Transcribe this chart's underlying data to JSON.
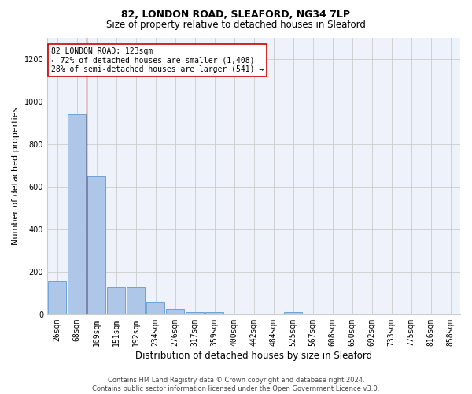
{
  "title_line1": "82, LONDON ROAD, SLEAFORD, NG34 7LP",
  "title_line2": "Size of property relative to detached houses in Sleaford",
  "xlabel": "Distribution of detached houses by size in Sleaford",
  "ylabel": "Number of detached properties",
  "footnote": "Contains HM Land Registry data © Crown copyright and database right 2024.\nContains public sector information licensed under the Open Government Licence v3.0.",
  "bins": [
    "26sqm",
    "68sqm",
    "109sqm",
    "151sqm",
    "192sqm",
    "234sqm",
    "276sqm",
    "317sqm",
    "359sqm",
    "400sqm",
    "442sqm",
    "484sqm",
    "525sqm",
    "567sqm",
    "608sqm",
    "650sqm",
    "692sqm",
    "733sqm",
    "775sqm",
    "816sqm",
    "858sqm"
  ],
  "bar_heights": [
    155,
    940,
    650,
    130,
    130,
    60,
    25,
    12,
    10,
    0,
    0,
    0,
    12,
    0,
    0,
    0,
    0,
    0,
    0,
    0,
    0
  ],
  "bar_color": "#aec6e8",
  "bar_edge_color": "#5b9bd5",
  "red_line_bin_index": 2,
  "annotation_text": "82 LONDON ROAD: 123sqm\n← 72% of detached houses are smaller (1,408)\n28% of semi-detached houses are larger (541) →",
  "annotation_box_color": "#ffffff",
  "annotation_box_edge_color": "#cc0000",
  "red_line_color": "#cc0000",
  "ylim": [
    0,
    1300
  ],
  "yticks": [
    0,
    200,
    400,
    600,
    800,
    1000,
    1200
  ],
  "grid_color": "#cccccc",
  "background_color": "#eef3fb",
  "title_fontsize": 9,
  "subtitle_fontsize": 8.5,
  "xlabel_fontsize": 8.5,
  "ylabel_fontsize": 8,
  "tick_fontsize": 7,
  "annotation_fontsize": 7,
  "footnote_fontsize": 6
}
